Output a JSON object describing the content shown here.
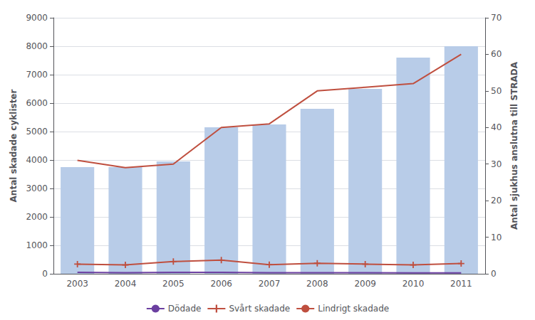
{
  "chart_data": {
    "type": "bar",
    "categories": [
      "2003",
      "2004",
      "2005",
      "2006",
      "2007",
      "2008",
      "2009",
      "2010",
      "2011"
    ],
    "series": [
      {
        "type": "bar",
        "color": "#b8cce8",
        "values": [
          3750,
          3750,
          3950,
          5150,
          5250,
          5800,
          6500,
          7600,
          8000
        ]
      },
      {
        "name": "Dödade",
        "type": "line",
        "color": "#6b3fa0",
        "marker": "none",
        "values": [
          50,
          40,
          50,
          50,
          40,
          40,
          40,
          30,
          30
        ]
      },
      {
        "name": "Svårt skadade",
        "type": "line",
        "color": "#bf4f3f",
        "marker": "plus",
        "values": [
          340,
          310,
          430,
          480,
          320,
          370,
          340,
          310,
          360
        ]
      },
      {
        "name": "Lindrigt skadade",
        "type": "line",
        "color": "#bf4f3f",
        "marker": "none",
        "axis": "y2",
        "values": [
          31,
          29,
          30,
          40,
          41,
          50,
          51,
          52,
          60
        ]
      }
    ],
    "ylabel": "Antal skadade cyklister",
    "y2label": "Antal sjukhus anslutna till STRADA",
    "ylim": [
      0,
      9000
    ],
    "yticks": [
      0,
      1000,
      2000,
      3000,
      4000,
      5000,
      6000,
      7000,
      8000,
      9000
    ],
    "y2lim": [
      0,
      70
    ],
    "y2ticks": [
      0,
      10,
      20,
      30,
      40,
      50,
      60,
      70
    ],
    "grid": true,
    "legend": "bottom"
  }
}
